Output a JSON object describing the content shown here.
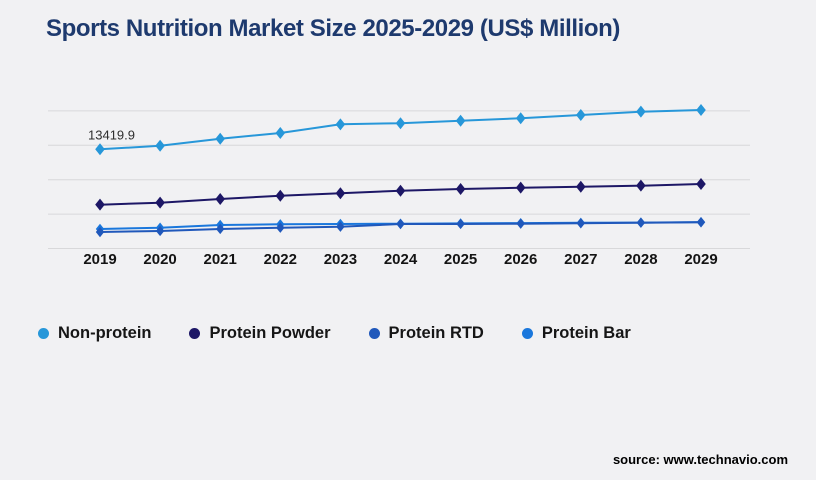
{
  "header": {
    "title": "Sports Nutrition Market Size 2025-2029 (US$ Million)"
  },
  "footer": {
    "source": "source: www.technavio.com"
  },
  "chart_data": {
    "type": "line",
    "title": "Sports Nutrition Market Size 2025-2029 (US$ Million)",
    "unit": "US$ Million",
    "years": [
      2019,
      2020,
      2021,
      2022,
      2023,
      2024,
      2025,
      2026,
      2027,
      2028,
      2029
    ],
    "y_axis": {
      "tick_labels_visible": false,
      "gridlines": 5,
      "estimated_range": [
        0,
        20000
      ]
    },
    "grid": "horizontal-only",
    "legend_position": "bottom-left",
    "marker": "diamond",
    "annotation": {
      "text": "13419.9",
      "series": "Non-protein",
      "year": 2019,
      "value": 13419.9
    },
    "series": [
      {
        "name": "Non-protein",
        "color": "#2797d9",
        "draw_order": 1,
        "marker_rx": 4.8,
        "marker_ry": 6,
        "values": [
          13419.9,
          13900,
          14850,
          15630,
          16800,
          16950,
          17290,
          17620,
          18060,
          18510,
          18740
        ]
      },
      {
        "name": "Protein Powder",
        "color": "#1d1766",
        "draw_order": 2,
        "marker_rx": 4.8,
        "marker_ry": 6,
        "values": [
          5930,
          6200,
          6700,
          7140,
          7470,
          7820,
          8050,
          8230,
          8360,
          8500,
          8730
        ]
      },
      {
        "name": "Protein RTD",
        "color": "#2058bb",
        "draw_order": 4,
        "marker_rx": 4.2,
        "marker_ry": 5.2,
        "values": [
          2230,
          2370,
          2640,
          2810,
          2950,
          3310,
          3320,
          3360,
          3410,
          3490,
          3550
        ]
      },
      {
        "name": "Protein Bar",
        "color": "#1a77dc",
        "draw_order": 3,
        "marker_rx": 4.2,
        "marker_ry": 5.2,
        "values": [
          2640,
          2810,
          3180,
          3270,
          3320,
          3360,
          3390,
          3430,
          3470,
          3510,
          3565
        ]
      }
    ]
  }
}
